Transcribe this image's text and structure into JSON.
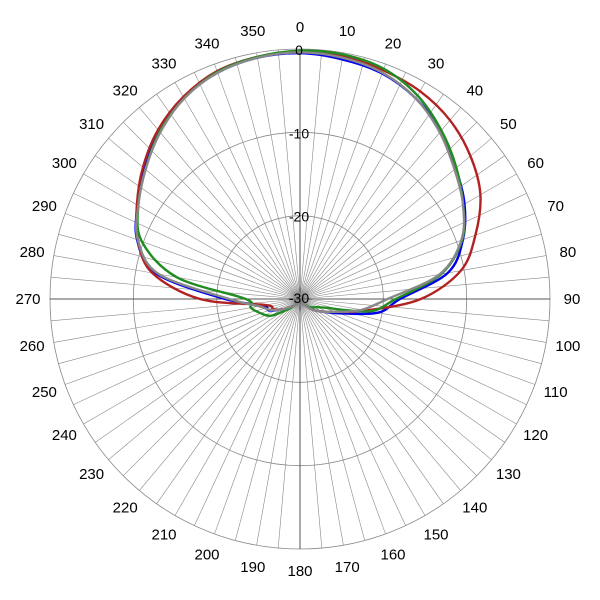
{
  "chart_data": {
    "type": "polar-line",
    "title": "",
    "angular_ticks": [
      "0",
      "10",
      "20",
      "30",
      "40",
      "50",
      "60",
      "70",
      "80",
      "90",
      "100",
      "110",
      "120",
      "130",
      "140",
      "150",
      "160",
      "170",
      "180",
      "190",
      "200",
      "210",
      "220",
      "230",
      "240",
      "250",
      "260",
      "270",
      "280",
      "290",
      "300",
      "310",
      "320",
      "330",
      "340",
      "350"
    ],
    "radial_ticks": [
      "0",
      "-10",
      "-20",
      "-30"
    ],
    "radial_range": [
      -30,
      0
    ],
    "angular_grid_step_deg": 5,
    "grid": true,
    "legend": "none",
    "series": [
      {
        "color": "#0000ee",
        "angles": [
          0,
          10,
          20,
          30,
          40,
          50,
          60,
          70,
          80,
          90,
          100,
          110,
          120,
          130,
          140,
          150,
          160,
          170,
          180,
          190,
          200,
          210,
          220,
          230,
          240,
          250,
          260,
          270,
          280,
          290,
          300,
          310,
          320,
          330,
          340,
          350
        ],
        "values": [
          -0.5,
          -0.8,
          -1.2,
          -2.2,
          -3.7,
          -5.6,
          -7.2,
          -9.2,
          -12.0,
          -18.0,
          -20.5,
          -25.0,
          -27.0,
          -28.0,
          -29.0,
          -29.5,
          -29.8,
          -29.8,
          -30.0,
          -29.8,
          -29.8,
          -29.5,
          -29.0,
          -28.5,
          -27.5,
          -26.0,
          -25.5,
          -21.0,
          -12.5,
          -9.2,
          -7.5,
          -5.5,
          -3.6,
          -2.1,
          -1.1,
          -0.6
        ]
      },
      {
        "color": "#b22222",
        "angles": [
          0,
          10,
          20,
          30,
          40,
          50,
          60,
          70,
          80,
          90,
          100,
          110,
          120,
          130,
          140,
          150,
          160,
          170,
          180,
          190,
          200,
          210,
          220,
          230,
          240,
          250,
          260,
          270,
          280,
          290,
          300,
          310,
          320,
          330,
          340,
          350
        ],
        "values": [
          -0.3,
          -0.4,
          -0.8,
          -1.2,
          -2.0,
          -3.3,
          -5.0,
          -7.6,
          -10.4,
          -15.5,
          -22.0,
          -25.5,
          -27.0,
          -28.0,
          -29.0,
          -29.5,
          -29.8,
          -29.8,
          -30.0,
          -29.8,
          -29.8,
          -29.5,
          -29.0,
          -28.5,
          -27.5,
          -26.5,
          -25.8,
          -18.0,
          -12.0,
          -9.3,
          -7.4,
          -5.4,
          -3.5,
          -2.0,
          -0.9,
          -0.5
        ]
      },
      {
        "color": "#228b22",
        "angles": [
          0,
          10,
          20,
          30,
          40,
          50,
          60,
          70,
          80,
          90,
          100,
          110,
          120,
          130,
          140,
          150,
          160,
          170,
          180,
          190,
          200,
          210,
          220,
          230,
          240,
          250,
          260,
          270,
          280,
          290,
          300,
          310,
          320,
          330,
          340,
          350
        ],
        "values": [
          -0.2,
          -0.2,
          -0.6,
          -1.8,
          -3.6,
          -5.5,
          -7.4,
          -9.3,
          -12.8,
          -18.5,
          -21.5,
          -27.0,
          -28.0,
          -28.5,
          -29.2,
          -29.5,
          -29.8,
          -29.8,
          -30.0,
          -29.8,
          -29.8,
          -29.5,
          -29.0,
          -28.0,
          -26.0,
          -25.0,
          -24.0,
          -23.5,
          -15.0,
          -9.8,
          -7.6,
          -5.8,
          -3.8,
          -2.2,
          -1.0,
          -0.5
        ]
      },
      {
        "color": "#888888",
        "angles": [
          0,
          10,
          20,
          30,
          40,
          50,
          60,
          70,
          80,
          90,
          100,
          110,
          120,
          130,
          140,
          150,
          160,
          170,
          180,
          190,
          200,
          210,
          220,
          230,
          240,
          250,
          260,
          270,
          280,
          290,
          300,
          310,
          320,
          330,
          340,
          350
        ],
        "values": [
          -0.4,
          -0.6,
          -1.1,
          -2.2,
          -3.9,
          -5.8,
          -7.4,
          -9.4,
          -13.0,
          -19.5,
          -22.5,
          -25.5,
          -27.0,
          -28.0,
          -29.0,
          -29.5,
          -29.8,
          -29.8,
          -30.0,
          -29.8,
          -29.8,
          -29.5,
          -29.0,
          -28.5,
          -27.5,
          -26.2,
          -25.0,
          -21.5,
          -12.8,
          -9.3,
          -7.6,
          -5.8,
          -3.9,
          -2.2,
          -1.1,
          -0.6
        ]
      }
    ]
  }
}
